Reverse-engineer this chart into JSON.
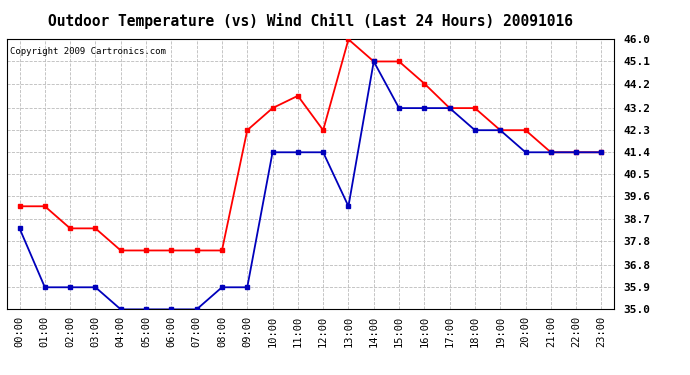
{
  "title": "Outdoor Temperature (vs) Wind Chill (Last 24 Hours) 20091016",
  "copyright": "Copyright 2009 Cartronics.com",
  "x_labels": [
    "00:00",
    "01:00",
    "02:00",
    "03:00",
    "04:00",
    "05:00",
    "06:00",
    "07:00",
    "08:00",
    "09:00",
    "10:00",
    "11:00",
    "12:00",
    "13:00",
    "14:00",
    "15:00",
    "16:00",
    "17:00",
    "18:00",
    "19:00",
    "20:00",
    "21:00",
    "22:00",
    "23:00"
  ],
  "temp_red": [
    39.2,
    39.2,
    38.3,
    38.3,
    37.4,
    37.4,
    37.4,
    37.4,
    37.4,
    42.3,
    43.2,
    43.7,
    42.3,
    46.0,
    45.1,
    45.1,
    44.2,
    43.2,
    43.2,
    42.3,
    42.3,
    41.4,
    41.4,
    41.4
  ],
  "wind_chill_blue": [
    38.3,
    35.9,
    35.9,
    35.9,
    35.0,
    35.0,
    35.0,
    35.0,
    35.9,
    35.9,
    41.4,
    41.4,
    41.4,
    39.2,
    45.1,
    43.2,
    43.2,
    43.2,
    42.3,
    42.3,
    41.4,
    41.4,
    41.4,
    41.4
  ],
  "ylim_min": 35.0,
  "ylim_max": 46.0,
  "yticks": [
    35.0,
    35.9,
    36.8,
    37.8,
    38.7,
    39.6,
    40.5,
    41.4,
    42.3,
    43.2,
    44.2,
    45.1,
    46.0
  ],
  "line_color_red": "#ff0000",
  "line_color_blue": "#0000bb",
  "marker": "s",
  "marker_size": 3,
  "line_width": 1.3,
  "bg_color": "#ffffff",
  "plot_bg_color": "#ffffff",
  "grid_color": "#bbbbbb",
  "title_fontsize": 10.5,
  "copyright_fontsize": 6.5,
  "tick_fontsize": 7.5,
  "ytick_fontsize": 8
}
